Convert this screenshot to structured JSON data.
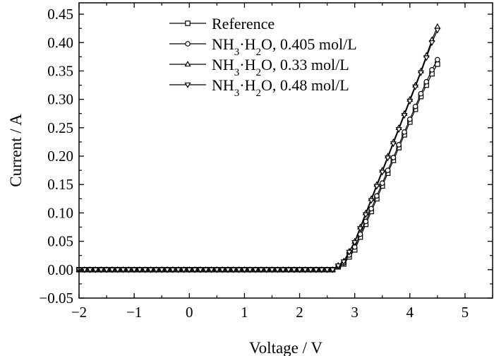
{
  "chart_data": {
    "type": "line",
    "xlabel": "Voltage / V",
    "ylabel": "Current / A",
    "xlim": [
      -2,
      5.5
    ],
    "ylim": [
      -0.05,
      0.47
    ],
    "x_ticks": [
      "−2",
      "−1",
      "0",
      "1",
      "2",
      "3",
      "4",
      "5"
    ],
    "x_tick_values": [
      -2,
      -1,
      0,
      1,
      2,
      3,
      4,
      5
    ],
    "y_ticks": [
      "−0.05",
      "0.00",
      "0.05",
      "0.10",
      "0.15",
      "0.20",
      "0.25",
      "0.30",
      "0.35",
      "0.40",
      "0.45"
    ],
    "y_tick_values": [
      -0.05,
      0,
      0.05,
      0.1,
      0.15,
      0.2,
      0.25,
      0.3,
      0.35,
      0.4,
      0.45
    ],
    "grid": false,
    "legend_position": "top-center",
    "line_color": "#000000",
    "marker_sample_step": 0.1,
    "series": [
      {
        "name": "Reference",
        "marker": "square",
        "x": [
          -2,
          2.6,
          2.8,
          3.0,
          3.2,
          3.4,
          3.6,
          3.8,
          4.0,
          4.2,
          4.4,
          4.5
        ],
        "y": [
          0,
          0,
          0.01,
          0.035,
          0.08,
          0.125,
          0.17,
          0.215,
          0.26,
          0.305,
          0.345,
          0.362
        ]
      },
      {
        "name": "NH3·H2O, 0.405 mol/L",
        "marker": "circle",
        "x": [
          -2,
          2.6,
          2.8,
          3.0,
          3.2,
          3.4,
          3.6,
          3.8,
          4.0,
          4.2,
          4.4,
          4.5
        ],
        "y": [
          0,
          0,
          0.012,
          0.04,
          0.085,
          0.13,
          0.175,
          0.22,
          0.265,
          0.31,
          0.352,
          0.37
        ]
      },
      {
        "name": "NH3·H2O, 0.33 mol/L",
        "marker": "triangle-up",
        "x": [
          -2,
          2.6,
          2.8,
          3.0,
          3.2,
          3.4,
          3.6,
          3.8,
          4.0,
          4.2,
          4.4,
          4.5
        ],
        "y": [
          0,
          0,
          0.015,
          0.05,
          0.1,
          0.15,
          0.2,
          0.25,
          0.3,
          0.35,
          0.405,
          0.428
        ]
      },
      {
        "name": "NH3·H2O, 0.48 mol/L",
        "marker": "triangle-down",
        "x": [
          -2,
          2.6,
          2.8,
          3.0,
          3.2,
          3.4,
          3.6,
          3.8,
          4.0,
          4.2,
          4.4,
          4.5
        ],
        "y": [
          0,
          0,
          0.014,
          0.048,
          0.097,
          0.147,
          0.197,
          0.247,
          0.297,
          0.347,
          0.4,
          0.422
        ]
      }
    ],
    "legend": [
      {
        "formula": "",
        "detail": "Reference"
      },
      {
        "formula": "NH3·H2O",
        "detail": ", 0.405 mol/L"
      },
      {
        "formula": "NH3·H2O",
        "detail": ", 0.33 mol/L"
      },
      {
        "formula": "NH3·H2O",
        "detail": ", 0.48 mol/L"
      }
    ]
  }
}
